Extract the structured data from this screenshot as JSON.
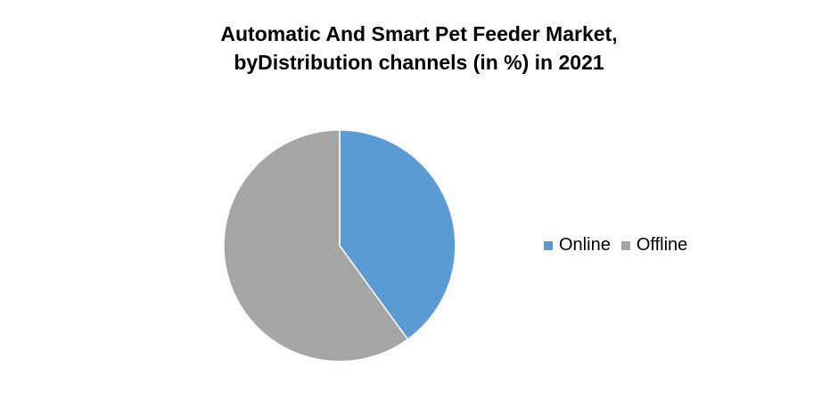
{
  "chart_data": {
    "type": "pie",
    "title_lines": [
      "Automatic And Smart Pet Feeder Market,",
      "byDistribution channels (in %) in 2021"
    ],
    "slices": [
      {
        "label": "Online",
        "value": 40,
        "color": "#5b9bd5"
      },
      {
        "label": "Offline",
        "value": 60,
        "color": "#a5a5a5"
      }
    ],
    "legend_position": "right",
    "start_angle": "12 o'clock",
    "direction": "clockwise"
  }
}
